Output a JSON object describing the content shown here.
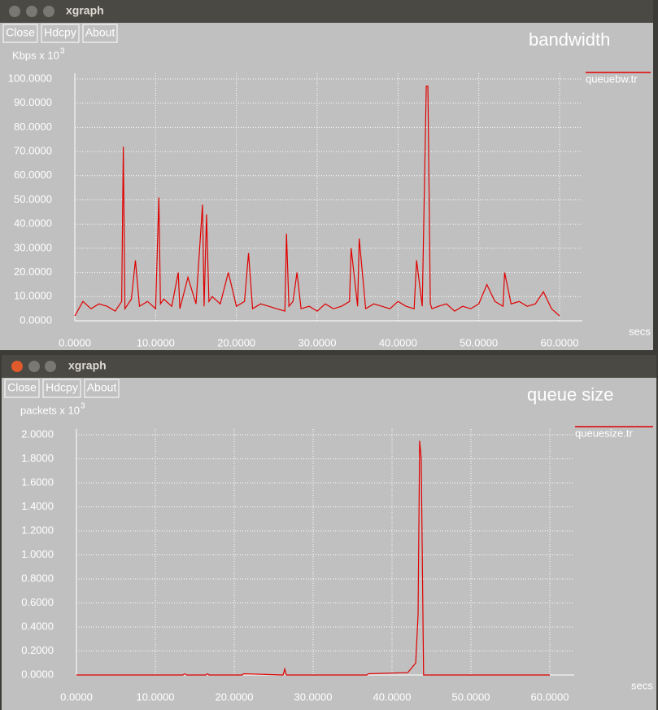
{
  "windows": [
    {
      "title": "xgraph",
      "buttons": [
        "Close",
        "Hdcpy",
        "About"
      ]
    },
    {
      "title": "xgraph",
      "buttons": [
        "Close",
        "Hdcpy",
        "About"
      ]
    }
  ],
  "chart_data": [
    {
      "type": "line",
      "title": "bandwidth",
      "ylabel": "Kbps x 10",
      "ylabel_exponent": "3",
      "xlabel": "secs",
      "grid": true,
      "legend": "top-right",
      "x": [
        0,
        1,
        2,
        3,
        4,
        5,
        5.8,
        6,
        6.2,
        7,
        7.5,
        8,
        9,
        10,
        10.4,
        10.6,
        11,
        12,
        12.8,
        13,
        14,
        15,
        15.8,
        16,
        16.3,
        16.6,
        17,
        18,
        19,
        20,
        21,
        21.5,
        22,
        23,
        24,
        25,
        26,
        26.2,
        26.5,
        27,
        27.5,
        28,
        29,
        30,
        31,
        32,
        33,
        34,
        34.2,
        35,
        35.2,
        36,
        37,
        38,
        39,
        40,
        41,
        42,
        42.3,
        43,
        43.5,
        43.7,
        44,
        44.2,
        45,
        46,
        47,
        48,
        49,
        50,
        51,
        52,
        53,
        53.2,
        54,
        55,
        56,
        57,
        58,
        59,
        60
      ],
      "series": [
        {
          "name": "queuebw.tr",
          "color": "#e00000",
          "values": [
            2,
            8,
            5,
            7,
            6,
            4,
            8,
            72,
            5,
            9,
            25,
            6,
            8,
            5,
            51,
            7,
            9,
            6,
            20,
            5,
            18,
            7,
            48,
            6,
            44,
            8,
            10,
            7,
            20,
            6,
            8,
            28,
            5,
            7,
            6,
            5,
            4,
            36,
            6,
            8,
            20,
            5,
            6,
            4,
            7,
            5,
            6,
            8,
            30,
            6,
            34,
            5,
            7,
            6,
            5,
            8,
            6,
            5,
            25,
            6,
            97,
            97,
            7,
            5,
            6,
            7,
            4,
            6,
            5,
            7,
            15,
            8,
            6,
            20,
            7,
            8,
            6,
            7,
            12,
            5,
            2
          ]
        }
      ],
      "xlim": [
        0,
        60
      ],
      "xticks": [
        {
          "value": 0,
          "label": "0.0000"
        },
        {
          "value": 10,
          "label": "10.0000"
        },
        {
          "value": 20,
          "label": "20.0000"
        },
        {
          "value": 30,
          "label": "30.0000"
        },
        {
          "value": 40,
          "label": "40.0000"
        },
        {
          "value": 50,
          "label": "50.0000"
        },
        {
          "value": 60,
          "label": "60.0000"
        }
      ],
      "ylim": [
        0,
        100
      ],
      "yticks": [
        {
          "value": 0,
          "label": "0.0000"
        },
        {
          "value": 10,
          "label": "10.0000"
        },
        {
          "value": 20,
          "label": "20.0000"
        },
        {
          "value": 30,
          "label": "30.0000"
        },
        {
          "value": 40,
          "label": "40.0000"
        },
        {
          "value": 50,
          "label": "50.0000"
        },
        {
          "value": 60,
          "label": "60.0000"
        },
        {
          "value": 70,
          "label": "70.0000"
        },
        {
          "value": 80,
          "label": "80.0000"
        },
        {
          "value": 90,
          "label": "90.0000"
        },
        {
          "value": 100,
          "label": "100.0000"
        }
      ]
    },
    {
      "type": "line",
      "title": "queue size",
      "ylabel": "packets x 10",
      "ylabel_exponent": "3",
      "xlabel": "secs",
      "grid": true,
      "legend": "top-right",
      "x": [
        0,
        13.5,
        13.7,
        14,
        16.4,
        16.6,
        16.8,
        21,
        21.2,
        26.2,
        26.4,
        26.6,
        36.8,
        37,
        42,
        43,
        43.3,
        43.5,
        43.7,
        44,
        60
      ],
      "series": [
        {
          "name": "queuesize.tr",
          "color": "#e00000",
          "values": [
            0,
            0,
            0.01,
            0,
            0,
            0.01,
            0,
            0,
            0.01,
            0,
            0.05,
            0,
            0,
            0.01,
            0.02,
            0.1,
            0.5,
            1.95,
            1.8,
            0,
            0
          ]
        }
      ],
      "xlim": [
        0,
        60
      ],
      "xticks": [
        {
          "value": 0,
          "label": "0.0000"
        },
        {
          "value": 10,
          "label": "10.0000"
        },
        {
          "value": 20,
          "label": "20.0000"
        },
        {
          "value": 30,
          "label": "30.0000"
        },
        {
          "value": 40,
          "label": "40.0000"
        },
        {
          "value": 50,
          "label": "50.0000"
        },
        {
          "value": 60,
          "label": "60.0000"
        }
      ],
      "ylim": [
        0,
        2
      ],
      "yticks": [
        {
          "value": 0,
          "label": "0.0000"
        },
        {
          "value": 0.2,
          "label": "0.2000"
        },
        {
          "value": 0.4,
          "label": "0.4000"
        },
        {
          "value": 0.6,
          "label": "0.6000"
        },
        {
          "value": 0.8,
          "label": "0.8000"
        },
        {
          "value": 1,
          "label": "1.0000"
        },
        {
          "value": 1.2,
          "label": "1.2000"
        },
        {
          "value": 1.4,
          "label": "1.4000"
        },
        {
          "value": 1.6,
          "label": "1.6000"
        },
        {
          "value": 1.8,
          "label": "1.8000"
        },
        {
          "value": 2,
          "label": "2.0000"
        }
      ]
    }
  ]
}
